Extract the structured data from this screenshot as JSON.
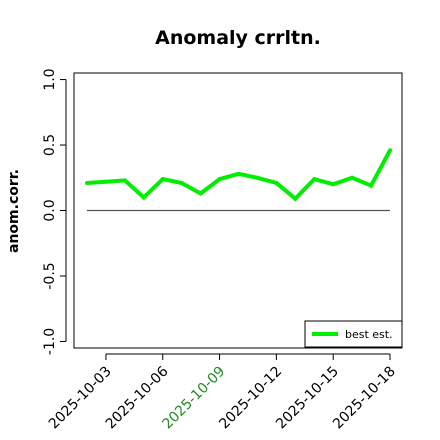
{
  "chart_data": {
    "type": "line",
    "title": "Anomaly crrltn.",
    "xlabel": "",
    "ylabel": "anom.corr.",
    "x": [
      "2025-10-02",
      "2025-10-03",
      "2025-10-04",
      "2025-10-05",
      "2025-10-06",
      "2025-10-07",
      "2025-10-08",
      "2025-10-09",
      "2025-10-10",
      "2025-10-11",
      "2025-10-12",
      "2025-10-13",
      "2025-10-14",
      "2025-10-15",
      "2025-10-16",
      "2025-10-17",
      "2025-10-18"
    ],
    "series": [
      {
        "name": "best est.",
        "color": "#00ee00",
        "values": [
          0.21,
          0.22,
          0.23,
          0.1,
          0.24,
          0.21,
          0.13,
          0.24,
          0.28,
          0.25,
          0.21,
          0.09,
          0.24,
          0.2,
          0.25,
          0.19,
          0.46
        ]
      }
    ],
    "reference_line": {
      "y": 0,
      "color": "#555555"
    },
    "ylim": [
      -1.05,
      1.05
    ],
    "yticks": [
      -1.0,
      -0.5,
      0.0,
      0.5,
      1.0
    ],
    "ytick_labels": [
      "-1.0",
      "-0.5",
      "0.0",
      "0.5",
      "1.0"
    ],
    "xtick_labels": [
      "2025-10-03",
      "2025-10-06",
      "2025-10-09",
      "2025-10-12",
      "2025-10-15",
      "2025-10-18"
    ],
    "xtick_colors": [
      "#000000",
      "#000000",
      "#228b22",
      "#000000",
      "#000000",
      "#000000"
    ],
    "legend": {
      "position": "bottom-right",
      "entries": [
        "best est."
      ]
    },
    "grid": false
  }
}
